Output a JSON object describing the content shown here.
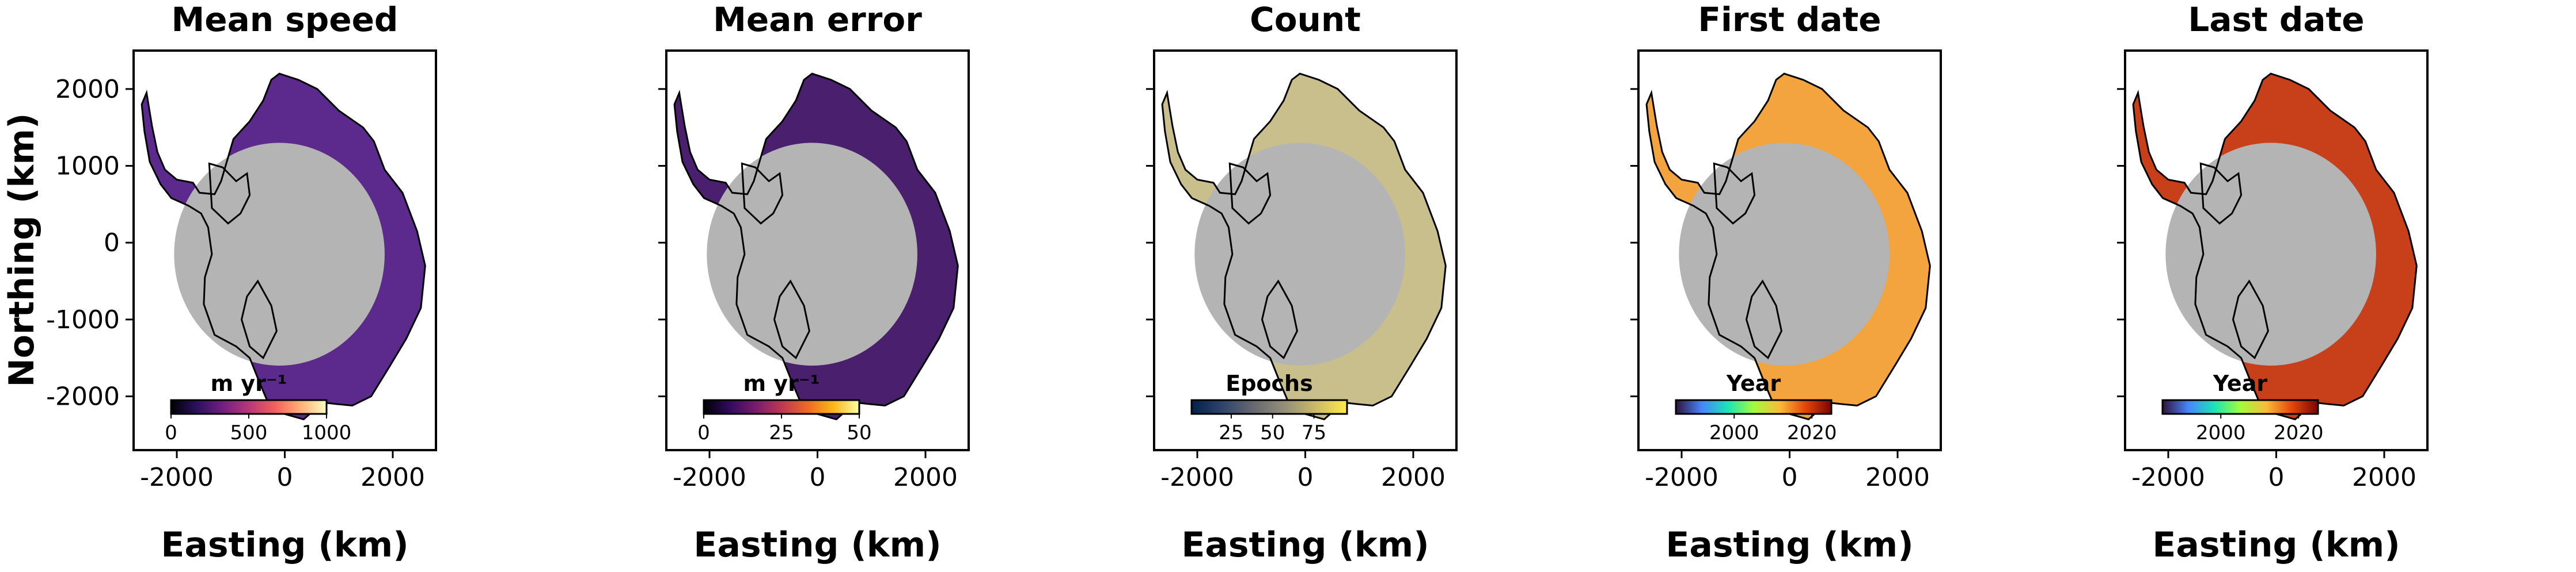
{
  "figure": {
    "ylabel": "Northing (km)",
    "xlabel": "Easting (km)"
  },
  "chart_data": [
    {
      "type": "heatmap",
      "title": "Mean speed",
      "xlabel": "Easting (km)",
      "ylabel": "Northing (km)",
      "xlim": [
        -2800,
        2800
      ],
      "ylim": [
        -2700,
        2500
      ],
      "xticks": [
        -2000,
        0,
        2000
      ],
      "xtick_labels": [
        "-2000",
        "0",
        "2000"
      ],
      "yticks": [
        2000,
        1000,
        0,
        -1000,
        -2000
      ],
      "ytick_labels": [
        "2000",
        "1000",
        "0",
        "-1000",
        "-2000"
      ],
      "colorbar": {
        "label": "m yr⁻¹",
        "range": [
          0,
          1000
        ],
        "ticks": [
          "0",
          "500",
          "1000"
        ],
        "colors": [
          "#000004",
          "#2c115f",
          "#721f81",
          "#b73779",
          "#f1605d",
          "#feb078",
          "#fcfdbf"
        ]
      },
      "fill_color": "#5c2a8c",
      "pole_hole_color": "#b4b4b4"
    },
    {
      "type": "heatmap",
      "title": "Mean error",
      "xlabel": "Easting (km)",
      "xlim": [
        -2800,
        2800
      ],
      "ylim": [
        -2700,
        2500
      ],
      "xticks": [
        -2000,
        0,
        2000
      ],
      "xtick_labels": [
        "-2000",
        "0",
        "2000"
      ],
      "colorbar": {
        "label": "m yr⁻¹",
        "range": [
          0,
          50
        ],
        "ticks": [
          "0",
          "25",
          "50"
        ],
        "colors": [
          "#000004",
          "#320a5e",
          "#781c6d",
          "#bc3754",
          "#ed6925",
          "#fbb61a",
          "#fcffa4"
        ]
      },
      "fill_color": "#4a1f6e",
      "pole_hole_color": "#b4b4b4"
    },
    {
      "type": "heatmap",
      "title": "Count",
      "xlabel": "Easting (km)",
      "xlim": [
        -2800,
        2800
      ],
      "ylim": [
        -2700,
        2500
      ],
      "xticks": [
        -2000,
        0,
        2000
      ],
      "xtick_labels": [
        "-2000",
        "0",
        "2000"
      ],
      "colorbar": {
        "label": "Epochs",
        "range": [
          1,
          95
        ],
        "ticks": [
          "25",
          "50",
          "75"
        ],
        "colors": [
          "#00204d",
          "#31446b",
          "#666970",
          "#958f78",
          "#cbba69",
          "#ffea46"
        ]
      },
      "fill_color": "#c9bf8c",
      "pole_hole_color": "#b4b4b4"
    },
    {
      "type": "heatmap",
      "title": "First date",
      "xlabel": "Easting (km)",
      "xlim": [
        -2800,
        2800
      ],
      "ylim": [
        -2700,
        2500
      ],
      "xticks": [
        -2000,
        0,
        2000
      ],
      "xtick_labels": [
        "-2000",
        "0",
        "2000"
      ],
      "colorbar": {
        "label": "Year",
        "range": [
          1985,
          2025
        ],
        "ticks": [
          "2000",
          "2020"
        ],
        "colors": [
          "#30123b",
          "#4686fb",
          "#1ae4b6",
          "#a2fc3c",
          "#fabb39",
          "#e4460a",
          "#7a0403"
        ]
      },
      "fill_color": "#f3a43e",
      "pole_hole_color": "#b4b4b4"
    },
    {
      "type": "heatmap",
      "title": "Last date",
      "xlabel": "Easting (km)",
      "xlim": [
        -2800,
        2800
      ],
      "ylim": [
        -2700,
        2500
      ],
      "xticks": [
        -2000,
        0,
        2000
      ],
      "xtick_labels": [
        "-2000",
        "0",
        "2000"
      ],
      "colorbar": {
        "label": "Year",
        "range": [
          1985,
          2025
        ],
        "ticks": [
          "2000",
          "2020"
        ],
        "colors": [
          "#30123b",
          "#4686fb",
          "#1ae4b6",
          "#a2fc3c",
          "#fabb39",
          "#e4460a",
          "#7a0403"
        ]
      },
      "fill_color": "#c8401a",
      "pole_hole_color": "#b4b4b4"
    }
  ]
}
